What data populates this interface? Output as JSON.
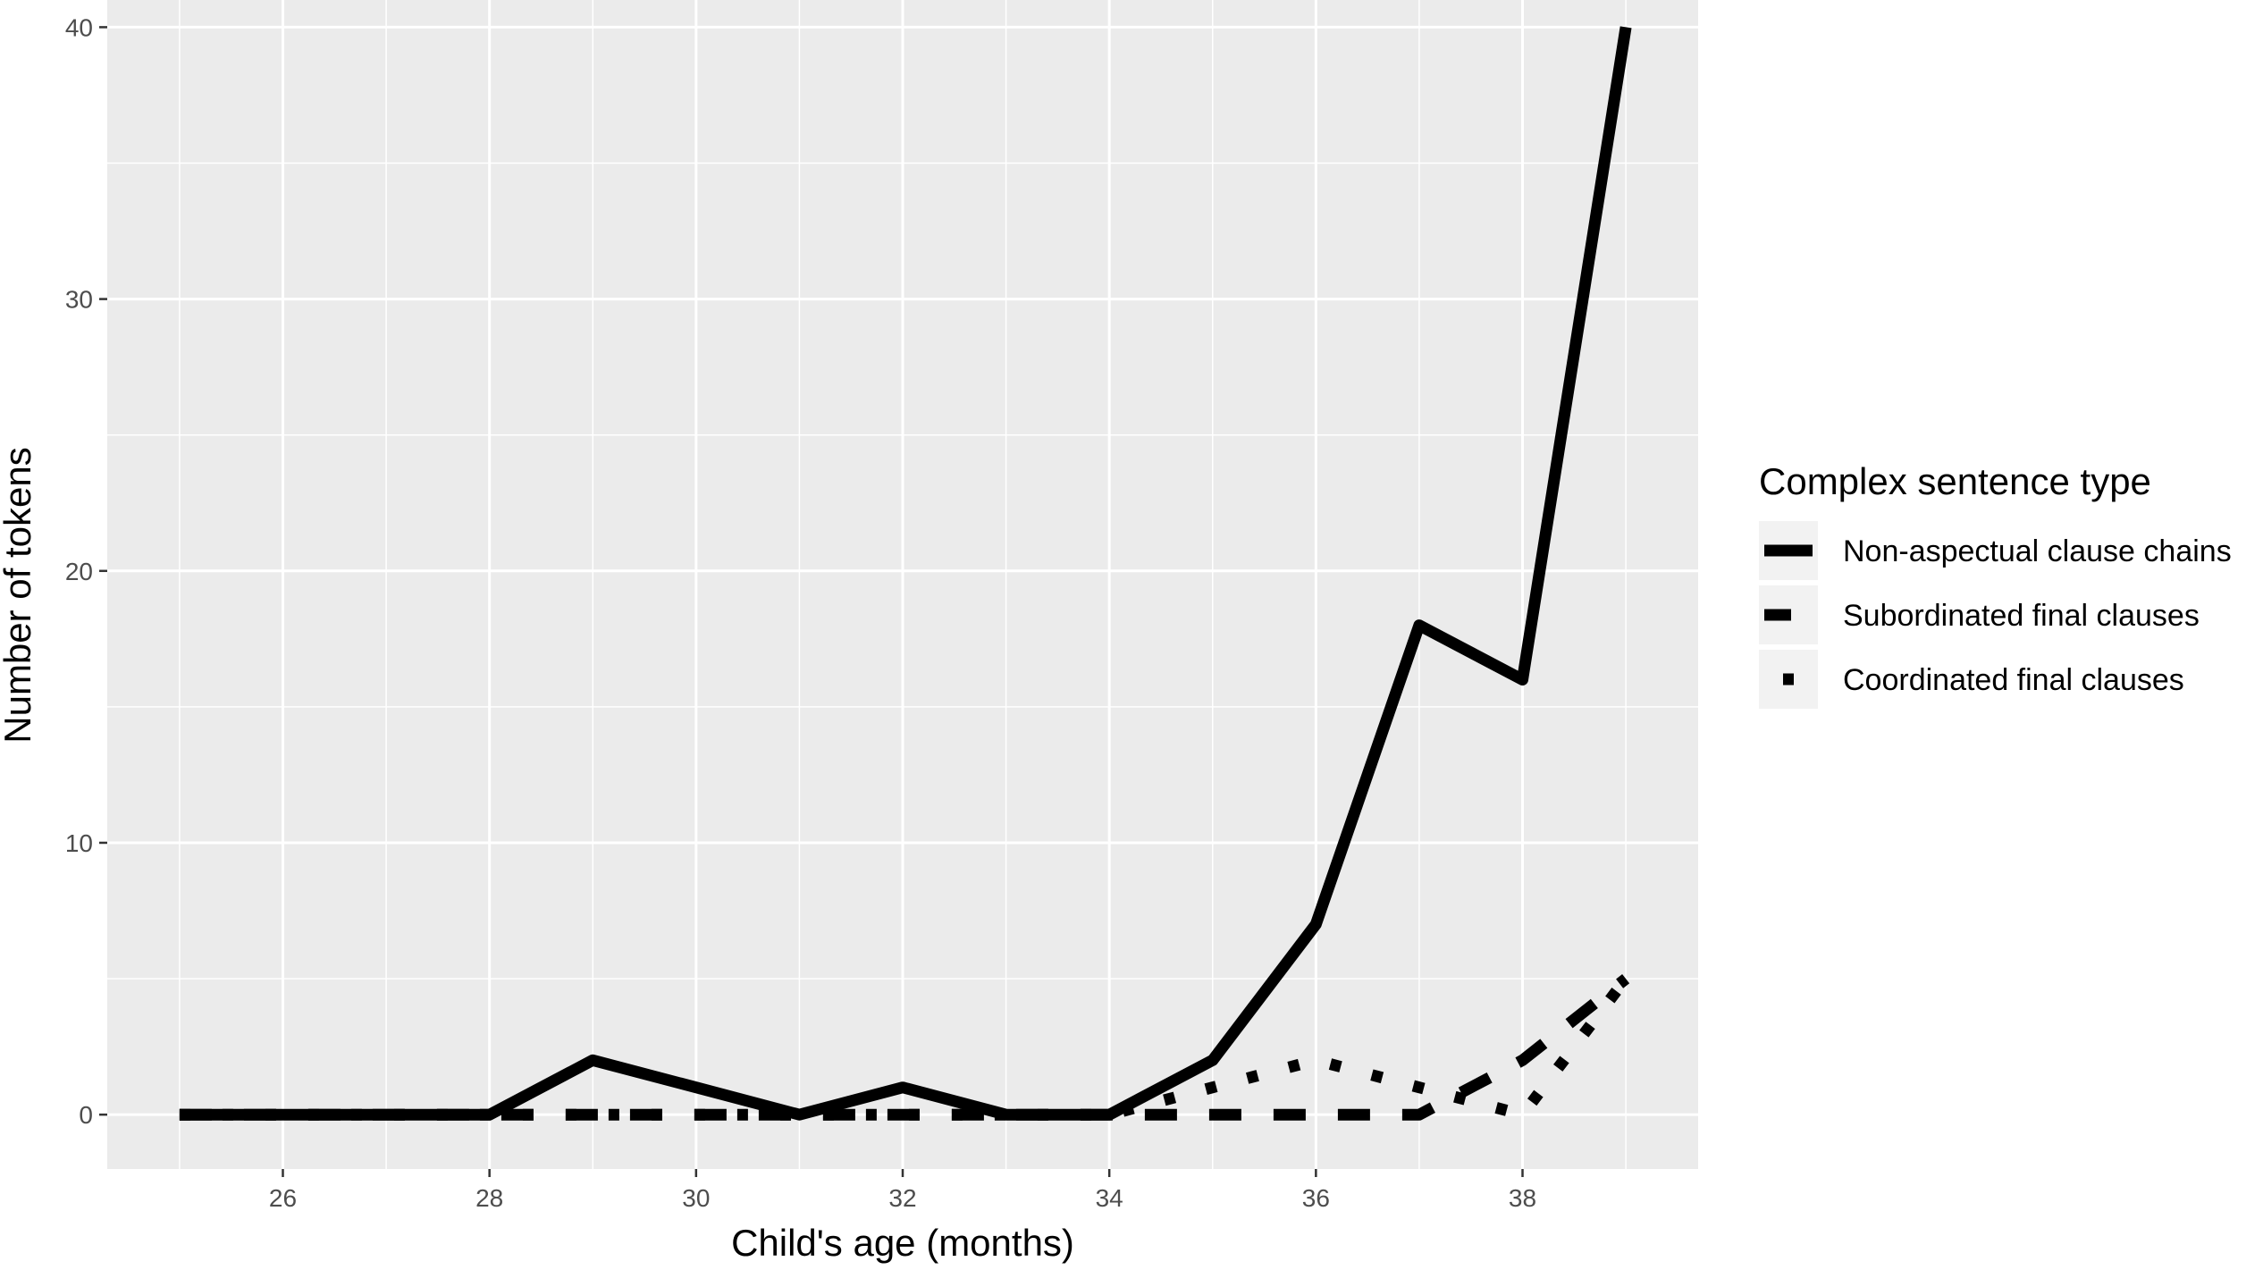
{
  "chart_data": {
    "type": "line",
    "title": "",
    "xlabel": "Child's age (months)",
    "ylabel": "Number of tokens",
    "xlim": [
      24.3,
      39.7
    ],
    "ylim": [
      -2,
      41
    ],
    "x_ticks": [
      26,
      28,
      30,
      32,
      34,
      36,
      38
    ],
    "x_tick_labels": [
      "26",
      "28",
      "30",
      "32",
      "34",
      "36",
      "38"
    ],
    "y_ticks": [
      0,
      10,
      20,
      30,
      40
    ],
    "y_tick_labels": [
      "0",
      "10",
      "20",
      "30",
      "40"
    ],
    "grid": true,
    "legend": {
      "title": "Complex sentence type",
      "placement": "right"
    },
    "x": [
      25,
      26,
      27,
      28,
      29,
      30,
      31,
      32,
      33,
      34,
      35,
      36,
      37,
      38,
      39
    ],
    "series": [
      {
        "name": "Non-aspectual clause chains",
        "linetype": "solid",
        "values": [
          0,
          0,
          0,
          0,
          2,
          1,
          0,
          1,
          0,
          0,
          2,
          7,
          18,
          16,
          40
        ]
      },
      {
        "name": "Subordinated final clauses",
        "linetype": "dashed",
        "values": [
          0,
          0,
          0,
          0,
          0,
          0,
          0,
          0,
          0,
          0,
          0,
          0,
          0,
          2,
          5
        ]
      },
      {
        "name": "Coordinated final clauses",
        "linetype": "dotted",
        "values": [
          0,
          0,
          0,
          0,
          0,
          0,
          0,
          0,
          0,
          0,
          1,
          2,
          1,
          0,
          5
        ]
      }
    ],
    "colors": {
      "panel_background": "#ebebeb",
      "grid_line": "#ffffff",
      "series_line": "#000000"
    }
  }
}
